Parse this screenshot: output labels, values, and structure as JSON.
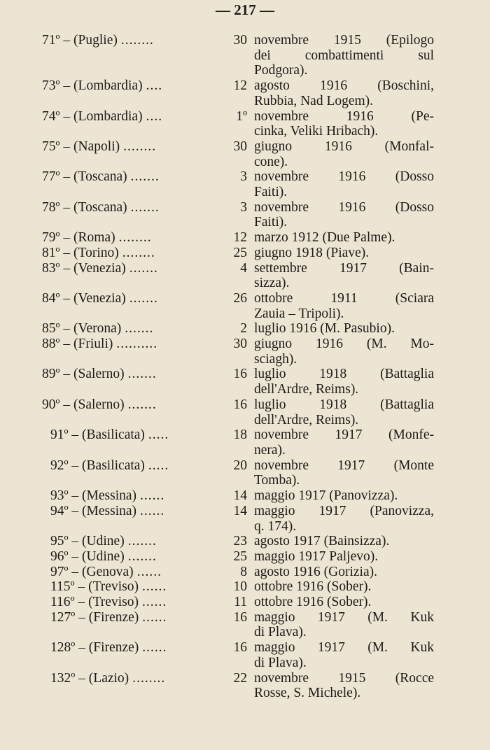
{
  "page_number": "— 217 —",
  "entries": [
    {
      "num": "71º",
      "region": "(Puglie)",
      "dots": "........",
      "day": "30",
      "lines": [
        "novembre 1915 (Epilogo",
        "dei combattimenti sul",
        "Podgora)."
      ]
    },
    {
      "num": "73º",
      "region": "(Lombardia)",
      "dots": "....",
      "day": "12",
      "lines": [
        "agosto 1916 (Boschini,",
        "Rubbia, Nad Logem)."
      ]
    },
    {
      "num": "74º",
      "region": "(Lombardia)",
      "dots": "....",
      "day": "1º",
      "lines": [
        "novembre 1916 (Pe-",
        "cinka, Veliki Hribach)."
      ]
    },
    {
      "num": "75º",
      "region": "(Napoli)",
      "dots": "........",
      "day": "30",
      "lines": [
        "giugno 1916 (Monfal-",
        "cone)."
      ]
    },
    {
      "num": "77º",
      "region": "(Toscana)",
      "dots": ".......",
      "day": "3",
      "lines": [
        "novembre 1916 (Dosso",
        "Faiti)."
      ]
    },
    {
      "num": "78º",
      "region": "(Toscana)",
      "dots": ".......",
      "day": "3",
      "lines": [
        "novembre 1916 (Dosso",
        "Faiti)."
      ]
    },
    {
      "num": "79º",
      "region": "(Roma)",
      "dots": "........",
      "day": "12",
      "lines": [
        "marzo 1912 (Due Palme)."
      ]
    },
    {
      "num": "81º",
      "region": "(Torino)",
      "dots": "........",
      "day": "25",
      "lines": [
        "giugno 1918 (Piave)."
      ]
    },
    {
      "num": "83º",
      "region": "(Venezia)",
      "dots": ".......",
      "day": "4",
      "lines": [
        "settembre 1917 (Bain-",
        "sizza)."
      ]
    },
    {
      "num": "84º",
      "region": "(Venezia)",
      "dots": ".......",
      "day": "26",
      "lines": [
        "ottobre 1911 (Sciara",
        "Zauia – Tripoli)."
      ]
    },
    {
      "num": "85º",
      "region": "(Verona)",
      "dots": ".......",
      "day": "2",
      "lines": [
        "luglio 1916 (M. Pasubio)."
      ]
    },
    {
      "num": "88º",
      "region": "(Friuli)",
      "dots": "..........",
      "day": "30",
      "lines": [
        "giugno 1916 (M. Mo-",
        "sciagh)."
      ]
    },
    {
      "num": "89º",
      "region": "(Salerno)",
      "dots": ".......",
      "day": "16",
      "lines": [
        "luglio 1918 (Battaglia",
        "dell'Ardre, Reims)."
      ]
    },
    {
      "num": "90º",
      "region": "(Salerno)",
      "dots": ".......",
      "day": "16",
      "lines": [
        "luglio 1918 (Battaglia",
        "dell'Ardre, Reims)."
      ]
    },
    {
      "num": "91º",
      "region": "(Basilicata)",
      "dots": ".....",
      "day": "18",
      "lines": [
        "novembre 1917 (Monfe-",
        "nera)."
      ]
    },
    {
      "num": "92º",
      "region": "(Basilicata)",
      "dots": ".....",
      "day": "20",
      "lines": [
        "novembre 1917 (Monte",
        "Tomba)."
      ]
    },
    {
      "num": "93º",
      "region": "(Messina)",
      "dots": "......",
      "day": "14",
      "lines": [
        "maggio 1917 (Panovizza)."
      ]
    },
    {
      "num": "94º",
      "region": "(Messina)",
      "dots": "......",
      "day": "14",
      "lines": [
        "maggio 1917 (Panovizza,",
        "q. 174)."
      ]
    },
    {
      "num": "95º",
      "region": "(Udine)",
      "dots": ".......",
      "day": "23",
      "lines": [
        "agosto 1917 (Bainsizza)."
      ]
    },
    {
      "num": "96º",
      "region": "(Udine)",
      "dots": ".......",
      "day": "25",
      "lines": [
        "maggio 1917 Paljevo)."
      ]
    },
    {
      "num": "97º",
      "region": "(Genova)",
      "dots": "......",
      "day": "8",
      "lines": [
        "agosto 1916 (Gorizia)."
      ]
    },
    {
      "num": "115º",
      "region": "(Treviso)",
      "dots": "......",
      "day": "10",
      "lines": [
        "ottobre 1916 (Sober)."
      ]
    },
    {
      "num": "116º",
      "region": "(Treviso)",
      "dots": "......",
      "day": "11",
      "lines": [
        "ottobre 1916 (Sober)."
      ]
    },
    {
      "num": "127º",
      "region": "(Firenze)",
      "dots": "......",
      "day": "16",
      "lines": [
        "maggio 1917 (M. Kuk",
        "di Plava)."
      ]
    },
    {
      "num": "128º",
      "region": "(Firenze)",
      "dots": "......",
      "day": "16",
      "lines": [
        "maggio 1917 (M. Kuk",
        "di Plava)."
      ]
    },
    {
      "num": "132º",
      "region": "(Lazio)",
      "dots": "........",
      "day": "22",
      "lines": [
        "novembre 1915 (Rocce",
        "Rosse, S. Michele)."
      ]
    }
  ]
}
